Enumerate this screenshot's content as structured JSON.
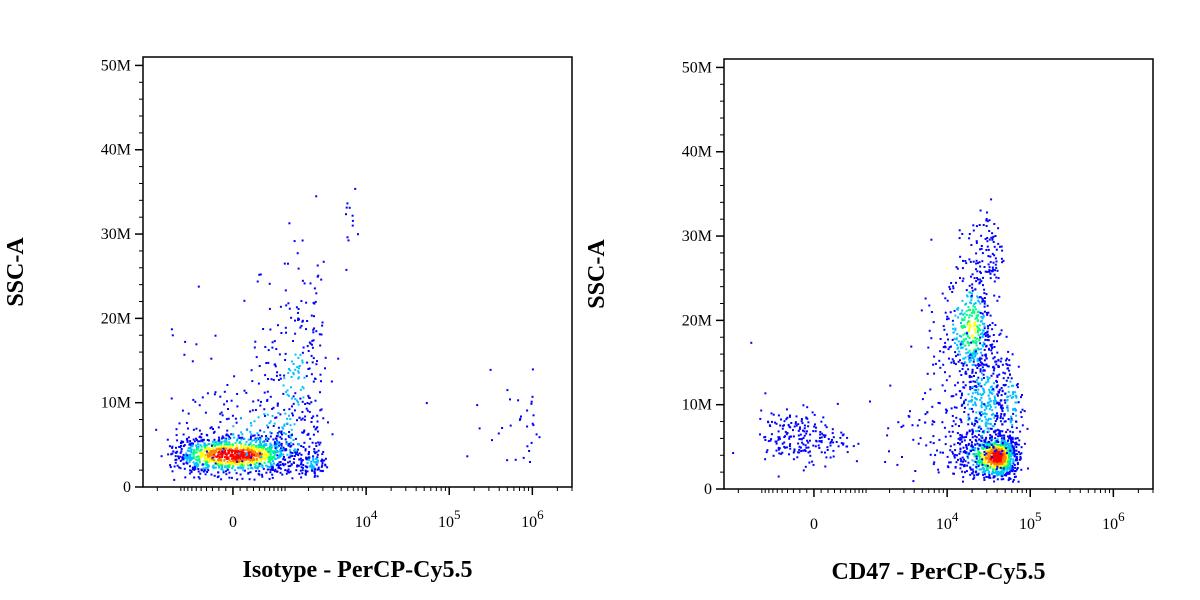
{
  "chart_data": [
    {
      "type": "scatter",
      "style": "density-dot-plot",
      "xlabel": "Isotype - PerCP-Cy5.5",
      "ylabel": "SSC-A",
      "x_scale": "biexponential",
      "x_range": [
        -3000,
        3000000
      ],
      "ylim": [
        0,
        51000000
      ],
      "y_ticks": [
        {
          "value": 0,
          "label": "0"
        },
        {
          "value": 10000000,
          "label": "10M"
        },
        {
          "value": 20000000,
          "label": "20M"
        },
        {
          "value": 30000000,
          "label": "30M"
        },
        {
          "value": 40000000,
          "label": "40M"
        },
        {
          "value": 50000000,
          "label": "50M"
        }
      ],
      "x_ticks": [
        {
          "value": 0,
          "label": "0"
        },
        {
          "value": 10000,
          "label": "10",
          "exp": "4"
        },
        {
          "value": 100000,
          "label": "10",
          "exp": "5"
        },
        {
          "value": 1000000,
          "label": "10",
          "exp": "6"
        }
      ],
      "density_colors": [
        "#0000ff",
        "#00c0ff",
        "#00ff80",
        "#ffff00",
        "#ff8000",
        "#ff0000"
      ],
      "clusters": [
        {
          "x_center": 20,
          "x_sd": 550,
          "y_center": 3800000,
          "y_sd": 1100000,
          "count": 1100,
          "weight": 1.0
        },
        {
          "x_center": 1400,
          "x_sd": 900,
          "y_center": 13000000,
          "y_sd": 6500000,
          "count": 260,
          "weight": 0.2
        },
        {
          "x_center": 700,
          "x_sd": 900,
          "y_center": 6000000,
          "y_sd": 3000000,
          "count": 220,
          "weight": 0.3
        },
        {
          "x_center": 2300,
          "x_sd": 500,
          "y_center": 2800000,
          "y_sd": 800000,
          "count": 90,
          "weight": 0.25
        },
        {
          "x_center": 6500,
          "x_sd": 600,
          "y_center": 30500000,
          "y_sd": 2000000,
          "count": 12,
          "weight": 0.05
        },
        {
          "x_center": 700000,
          "x_sd": 350000,
          "y_center": 7000000,
          "y_sd": 2800000,
          "count": 35,
          "weight": 0.05
        }
      ]
    },
    {
      "type": "scatter",
      "style": "density-dot-plot",
      "xlabel": "CD47 - PerCP-Cy5.5",
      "ylabel": "SSC-A",
      "x_scale": "biexponential",
      "x_range": [
        -3000,
        3000000
      ],
      "ylim": [
        0,
        51000000
      ],
      "y_ticks": [
        {
          "value": 0,
          "label": "0"
        },
        {
          "value": 10000000,
          "label": "10M"
        },
        {
          "value": 20000000,
          "label": "20M"
        },
        {
          "value": 30000000,
          "label": "30M"
        },
        {
          "value": 40000000,
          "label": "40M"
        },
        {
          "value": 50000000,
          "label": "50M"
        }
      ],
      "x_ticks": [
        {
          "value": 0,
          "label": "0"
        },
        {
          "value": 10000,
          "label": "10",
          "exp": "4"
        },
        {
          "value": 100000,
          "label": "10",
          "exp": "5"
        },
        {
          "value": 1000000,
          "label": "10",
          "exp": "6"
        }
      ],
      "density_colors": [
        "#0000ff",
        "#00c0ff",
        "#00ff80",
        "#ffff00",
        "#ff8000",
        "#ff0000"
      ],
      "clusters": [
        {
          "x_center": 40000,
          "x_sd": 14000,
          "y_center": 3800000,
          "y_sd": 1300000,
          "count": 900,
          "weight": 1.0
        },
        {
          "x_center": 20000,
          "x_sd": 6000,
          "y_center": 19000000,
          "y_sd": 3200000,
          "count": 380,
          "weight": 0.55
        },
        {
          "x_center": 28000,
          "x_sd": 12000,
          "y_center": 10000000,
          "y_sd": 4000000,
          "count": 380,
          "weight": 0.3
        },
        {
          "x_center": 30000,
          "x_sd": 9000,
          "y_center": 28000000,
          "y_sd": 3000000,
          "count": 110,
          "weight": 0.1
        },
        {
          "x_center": 60000,
          "x_sd": 12000,
          "y_center": 10000000,
          "y_sd": 3500000,
          "count": 110,
          "weight": 0.25
        },
        {
          "x_center": 16000,
          "x_sd": 5000,
          "y_center": 6000000,
          "y_sd": 4000000,
          "count": 120,
          "weight": 0.15
        },
        {
          "x_center": -200,
          "x_sd": 350,
          "y_center": 6000000,
          "y_sd": 1500000,
          "count": 200,
          "weight": 0.15
        },
        {
          "x_center": 3500,
          "x_sd": 2500,
          "y_center": 7000000,
          "y_sd": 2800000,
          "count": 22,
          "weight": 0.05
        }
      ]
    }
  ]
}
